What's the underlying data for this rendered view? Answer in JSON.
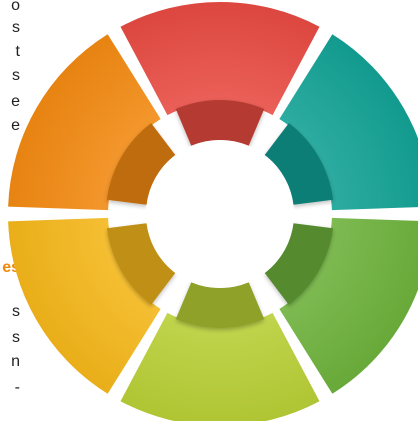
{
  "colors": {
    "red": "#e84b42",
    "teal": "#13a295",
    "green": "#6db23c",
    "lime": "#b9cf36",
    "yellow": "#f5b71a",
    "orange": "#f38a12",
    "background": "#ffffff",
    "text": "#222222",
    "accent_text": "#f08a0c"
  },
  "left_text_fragments": [
    {
      "text": "o",
      "style": "plain"
    },
    {
      "text": "s",
      "style": "plain"
    },
    {
      "text": "t",
      "style": "plain"
    },
    {
      "text": "s",
      "style": "plain"
    },
    {
      "text": "e",
      "style": "plain"
    },
    {
      "text": "e",
      "style": "plain"
    },
    {
      "text": "es",
      "style": "orange"
    },
    {
      "text": "s",
      "style": "plain"
    },
    {
      "text": "s",
      "style": "plain"
    },
    {
      "text": "n",
      "style": "plain"
    },
    {
      "text": "-",
      "style": "plain"
    }
  ],
  "ring_segments": [
    {
      "name": "red",
      "color_key": "red"
    },
    {
      "name": "teal",
      "color_key": "teal"
    },
    {
      "name": "green",
      "color_key": "green"
    },
    {
      "name": "lime",
      "color_key": "lime"
    },
    {
      "name": "yellow",
      "color_key": "yellow"
    },
    {
      "name": "orange",
      "color_key": "orange"
    }
  ]
}
